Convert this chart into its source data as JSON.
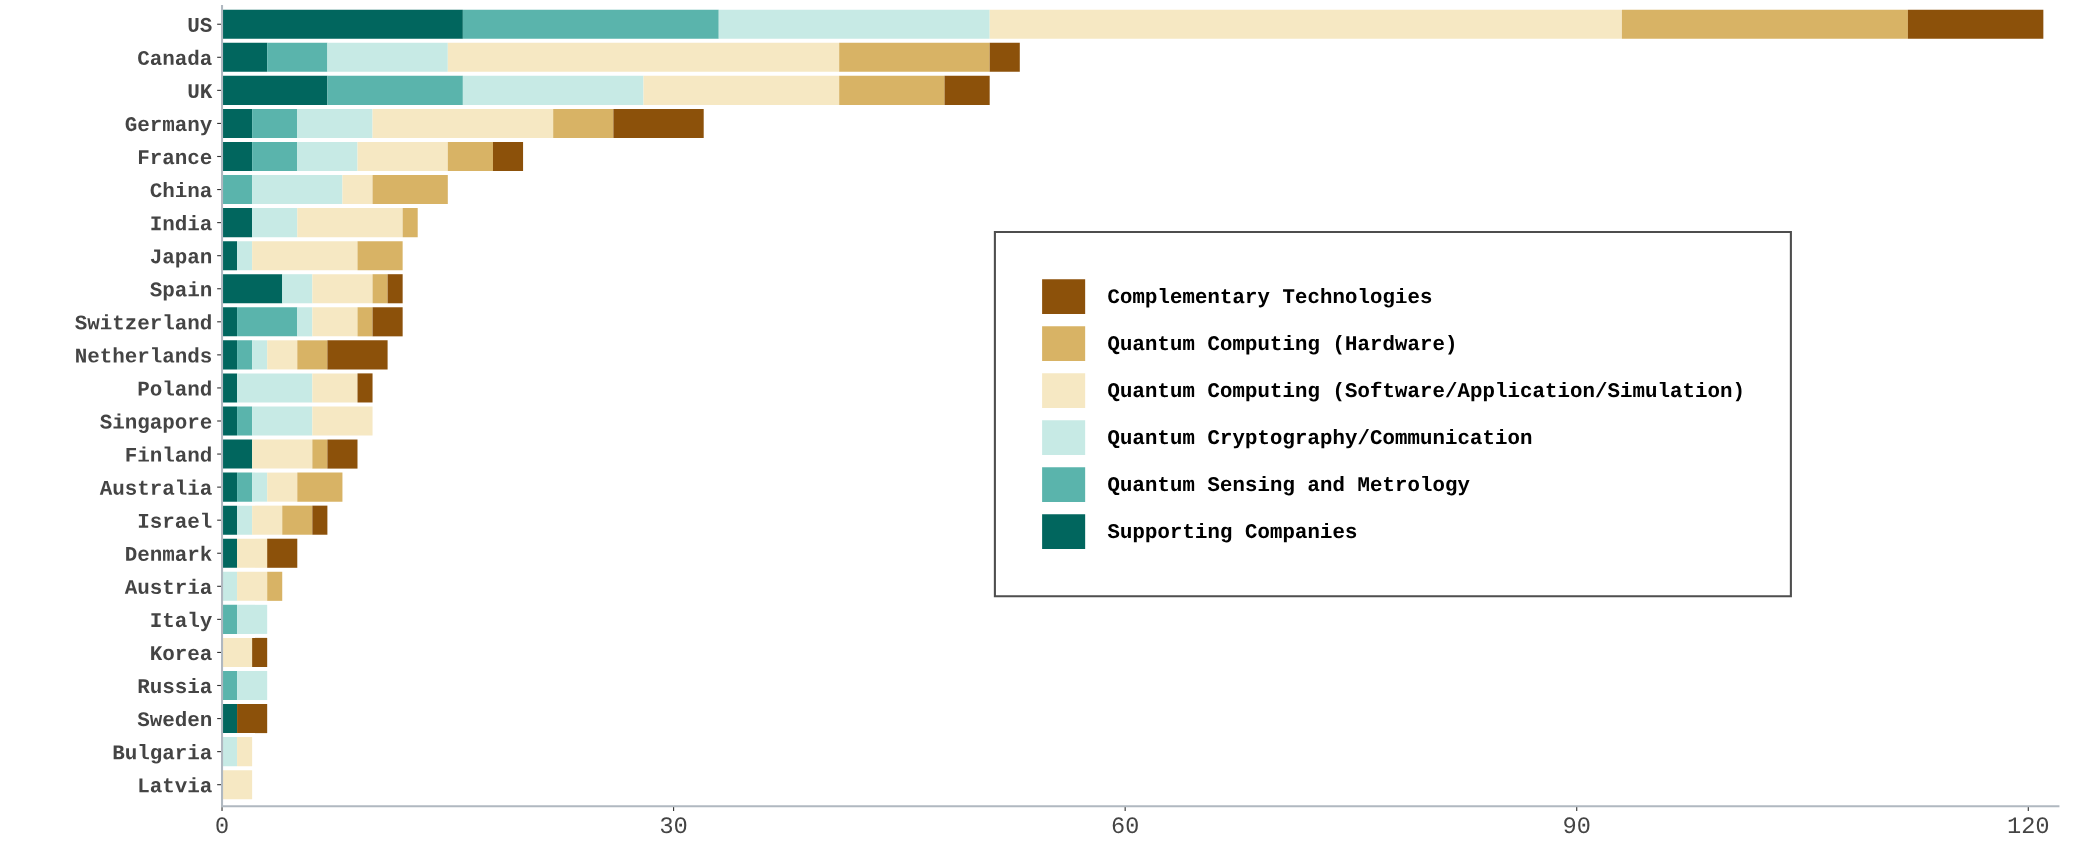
{
  "chart_data": {
    "type": "bar",
    "orientation": "horizontal",
    "stacked": true,
    "categories": [
      "US",
      "Canada",
      "UK",
      "Germany",
      "France",
      "China",
      "India",
      "Japan",
      "Spain",
      "Switzerland",
      "Netherlands",
      "Poland",
      "Singapore",
      "Finland",
      "Australia",
      "Israel",
      "Denmark",
      "Austria",
      "Italy",
      "Korea",
      "Russia",
      "Sweden",
      "Bulgaria",
      "Latvia"
    ],
    "series": [
      {
        "name": "Supporting Companies",
        "color": "#01665e",
        "values": [
          16,
          3,
          7,
          2,
          2,
          0,
          2,
          1,
          4,
          1,
          1,
          1,
          1,
          2,
          1,
          1,
          1,
          0,
          0,
          0,
          0,
          1,
          0,
          0
        ]
      },
      {
        "name": "Quantum Sensing and Metrology",
        "color": "#5ab4ac",
        "values": [
          17,
          4,
          9,
          3,
          3,
          2,
          0,
          0,
          0,
          4,
          1,
          0,
          1,
          0,
          1,
          0,
          0,
          0,
          1,
          0,
          1,
          0,
          0,
          0
        ]
      },
      {
        "name": "Quantum Cryptography/Communication",
        "color": "#c7eae5",
        "values": [
          18,
          8,
          12,
          5,
          4,
          6,
          3,
          1,
          2,
          1,
          1,
          5,
          4,
          0,
          1,
          1,
          0,
          1,
          2,
          0,
          2,
          0,
          1,
          0
        ]
      },
      {
        "name": "Quantum Computing (Software/Application/Simulation)",
        "color": "#f6e8c3",
        "values": [
          42,
          26,
          13,
          12,
          6,
          2,
          7,
          7,
          4,
          3,
          2,
          3,
          4,
          4,
          2,
          2,
          2,
          2,
          0,
          2,
          0,
          0,
          1,
          2
        ]
      },
      {
        "name": "Quantum Computing (Hardware)",
        "color": "#d8b365",
        "values": [
          19,
          10,
          7,
          4,
          3,
          5,
          1,
          3,
          1,
          1,
          2,
          0,
          0,
          1,
          3,
          2,
          0,
          1,
          0,
          0,
          0,
          0,
          0,
          0
        ]
      },
      {
        "name": "Complementary Technologies",
        "color": "#8c510a",
        "values": [
          9,
          2,
          3,
          6,
          2,
          0,
          0,
          0,
          1,
          2,
          4,
          1,
          0,
          2,
          0,
          1,
          2,
          0,
          0,
          1,
          0,
          2,
          0,
          0
        ]
      }
    ],
    "xlim": [
      0,
      122
    ],
    "xticks": [
      0,
      30,
      60,
      90,
      120
    ],
    "grid": false,
    "legend": "right"
  }
}
